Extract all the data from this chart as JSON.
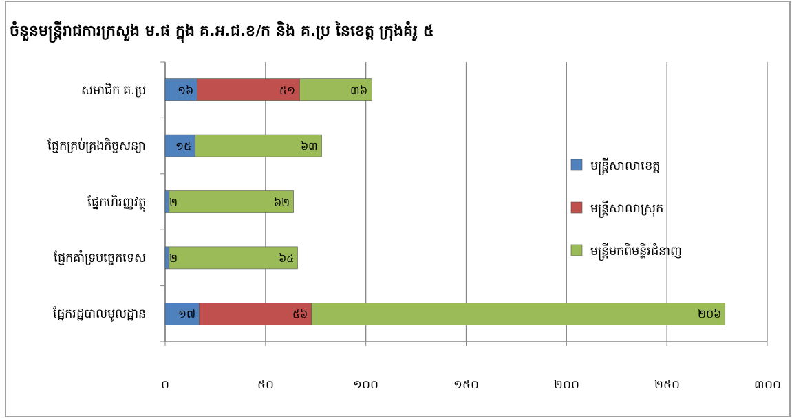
{
  "chart_data": {
    "type": "bar",
    "orientation": "horizontal",
    "stacked": true,
    "title": "ចំនួនមន្ត្រីរាជការក្រសួង ម.ផ ក្នុង គ.អ.ជ.ខ/ក និង គ.ប្រ នៃខេត្ត ក្រុងគំរូ ៥",
    "categories": [
      "សមាជិក គ.ប្រ",
      "ផ្នែកគ្រប់គ្រងកិច្ចសន្យា",
      "ផ្នែកហិរញ្ញវត្ថុ",
      "ផ្នែកគាំទ្របច្ចេកទេស",
      "ផ្នែករដ្ឋបាលមូលដ្ឋាន"
    ],
    "series": [
      {
        "name": "មន្ត្រីសាលាខេត្ត",
        "color": "#4f81bd",
        "values": [
          16,
          15,
          2,
          2,
          17
        ],
        "value_labels": [
          "១៦",
          "១៥",
          "២",
          "២",
          "១៧"
        ]
      },
      {
        "name": "មន្ត្រីសាលាស្រុក",
        "color": "#c0504d",
        "values": [
          51,
          null,
          null,
          null,
          56
        ],
        "value_labels": [
          "៥១",
          null,
          null,
          null,
          "៥៦"
        ]
      },
      {
        "name": "មន្ត្រីមកពីមន្ទីរជំនាញ",
        "color": "#9bbb59",
        "values": [
          36,
          63,
          62,
          64,
          206
        ],
        "value_labels": [
          "៣៦",
          "៦៣",
          "៦២",
          "៦៤",
          "២០៦"
        ]
      }
    ],
    "xlim": [
      0,
      300
    ],
    "xticks": [
      {
        "value": 0,
        "label": "០"
      },
      {
        "value": 50,
        "label": "៥០"
      },
      {
        "value": 100,
        "label": "១០០"
      },
      {
        "value": 150,
        "label": "១៥០"
      },
      {
        "value": 200,
        "label": "២០០"
      },
      {
        "value": 250,
        "label": "២៥០"
      },
      {
        "value": 300,
        "label": "៣០០"
      }
    ],
    "grid": "x",
    "legend": "right"
  }
}
